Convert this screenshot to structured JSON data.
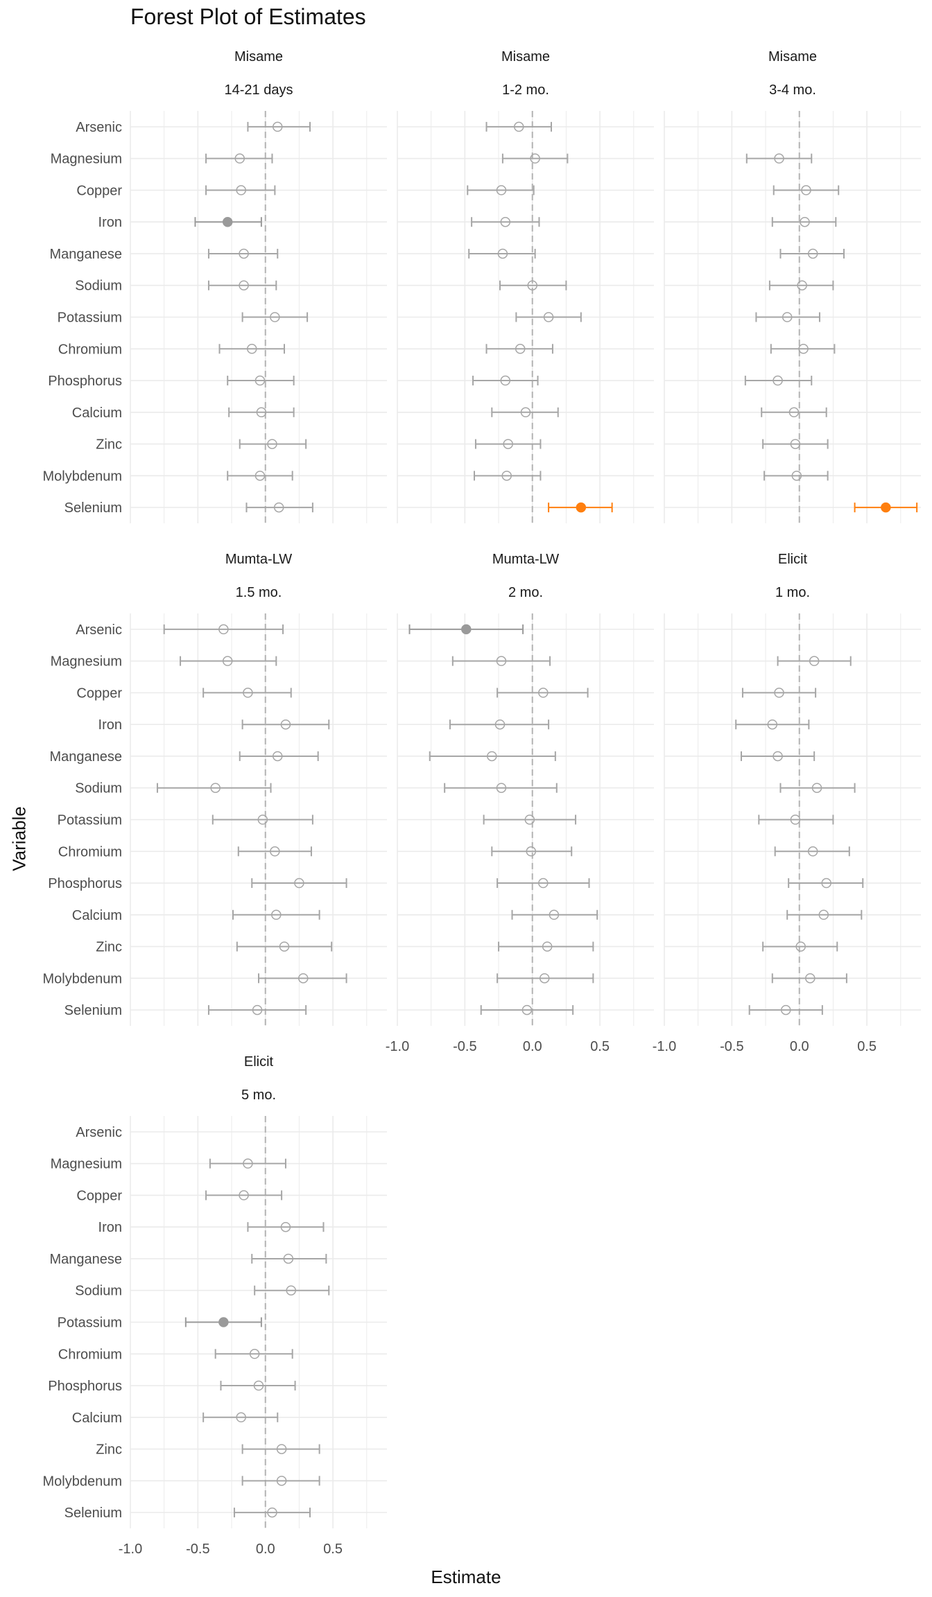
{
  "chart_data": {
    "type": "forest",
    "title": "Forest Plot of Estimates",
    "xlabel": "Estimate",
    "ylabel": "Variable",
    "xlim": [
      -1.0,
      0.9
    ],
    "xticks": [
      "-1.0",
      "-0.5",
      "0.0",
      "0.5"
    ],
    "reference_line": 0,
    "grid": true,
    "colors": {
      "non_significant": "#a6a6a6",
      "significant_negative": "#9a9a9a",
      "significant_positive": "#ff7f0e",
      "reference_line": "#b3b3b3",
      "grid": "#ebebeb"
    },
    "variables": [
      "Arsenic",
      "Magnesium",
      "Copper",
      "Iron",
      "Manganese",
      "Sodium",
      "Potassium",
      "Chromium",
      "Phosphorus",
      "Calcium",
      "Zinc",
      "Molybdenum",
      "Selenium"
    ],
    "panels": [
      {
        "study": "Misame",
        "timepoint": "14-21 days",
        "estimates": [
          {
            "variable": "Arsenic",
            "est": 0.09,
            "lo": -0.13,
            "hi": 0.33,
            "sig": false
          },
          {
            "variable": "Magnesium",
            "est": -0.19,
            "lo": -0.44,
            "hi": 0.05,
            "sig": false
          },
          {
            "variable": "Copper",
            "est": -0.18,
            "lo": -0.44,
            "hi": 0.07,
            "sig": false
          },
          {
            "variable": "Iron",
            "est": -0.28,
            "lo": -0.52,
            "hi": -0.03,
            "sig": true,
            "direction": "negative"
          },
          {
            "variable": "Manganese",
            "est": -0.16,
            "lo": -0.42,
            "hi": 0.09,
            "sig": false
          },
          {
            "variable": "Sodium",
            "est": -0.16,
            "lo": -0.42,
            "hi": 0.08,
            "sig": false
          },
          {
            "variable": "Potassium",
            "est": 0.07,
            "lo": -0.17,
            "hi": 0.31,
            "sig": false
          },
          {
            "variable": "Chromium",
            "est": -0.1,
            "lo": -0.34,
            "hi": 0.14,
            "sig": false
          },
          {
            "variable": "Phosphorus",
            "est": -0.04,
            "lo": -0.28,
            "hi": 0.21,
            "sig": false
          },
          {
            "variable": "Calcium",
            "est": -0.03,
            "lo": -0.27,
            "hi": 0.21,
            "sig": false
          },
          {
            "variable": "Zinc",
            "est": 0.05,
            "lo": -0.19,
            "hi": 0.3,
            "sig": false
          },
          {
            "variable": "Molybdenum",
            "est": -0.04,
            "lo": -0.28,
            "hi": 0.2,
            "sig": false
          },
          {
            "variable": "Selenium",
            "est": 0.1,
            "lo": -0.14,
            "hi": 0.35,
            "sig": false
          }
        ]
      },
      {
        "study": "Misame",
        "timepoint": "1-2 mo.",
        "estimates": [
          {
            "variable": "Arsenic",
            "est": -0.1,
            "lo": -0.34,
            "hi": 0.14,
            "sig": false
          },
          {
            "variable": "Magnesium",
            "est": 0.02,
            "lo": -0.22,
            "hi": 0.26,
            "sig": false
          },
          {
            "variable": "Copper",
            "est": -0.23,
            "lo": -0.48,
            "hi": 0.01,
            "sig": false
          },
          {
            "variable": "Iron",
            "est": -0.2,
            "lo": -0.45,
            "hi": 0.05,
            "sig": false
          },
          {
            "variable": "Manganese",
            "est": -0.22,
            "lo": -0.47,
            "hi": 0.02,
            "sig": false
          },
          {
            "variable": "Sodium",
            "est": 0.0,
            "lo": -0.24,
            "hi": 0.25,
            "sig": false
          },
          {
            "variable": "Potassium",
            "est": 0.12,
            "lo": -0.12,
            "hi": 0.36,
            "sig": false
          },
          {
            "variable": "Chromium",
            "est": -0.09,
            "lo": -0.34,
            "hi": 0.15,
            "sig": false
          },
          {
            "variable": "Phosphorus",
            "est": -0.2,
            "lo": -0.44,
            "hi": 0.04,
            "sig": false
          },
          {
            "variable": "Calcium",
            "est": -0.05,
            "lo": -0.3,
            "hi": 0.19,
            "sig": false
          },
          {
            "variable": "Zinc",
            "est": -0.18,
            "lo": -0.42,
            "hi": 0.06,
            "sig": false
          },
          {
            "variable": "Molybdenum",
            "est": -0.19,
            "lo": -0.43,
            "hi": 0.06,
            "sig": false
          },
          {
            "variable": "Selenium",
            "est": 0.36,
            "lo": 0.12,
            "hi": 0.59,
            "sig": true,
            "direction": "positive"
          }
        ]
      },
      {
        "study": "Misame",
        "timepoint": "3-4 mo.",
        "estimates": [
          {
            "variable": "Arsenic",
            "est": null,
            "lo": null,
            "hi": null,
            "sig": false
          },
          {
            "variable": "Magnesium",
            "est": -0.15,
            "lo": -0.39,
            "hi": 0.09,
            "sig": false
          },
          {
            "variable": "Copper",
            "est": 0.05,
            "lo": -0.19,
            "hi": 0.29,
            "sig": false
          },
          {
            "variable": "Iron",
            "est": 0.04,
            "lo": -0.2,
            "hi": 0.27,
            "sig": false
          },
          {
            "variable": "Manganese",
            "est": 0.1,
            "lo": -0.14,
            "hi": 0.33,
            "sig": false
          },
          {
            "variable": "Sodium",
            "est": 0.02,
            "lo": -0.22,
            "hi": 0.25,
            "sig": false
          },
          {
            "variable": "Potassium",
            "est": -0.09,
            "lo": -0.32,
            "hi": 0.15,
            "sig": false
          },
          {
            "variable": "Chromium",
            "est": 0.03,
            "lo": -0.21,
            "hi": 0.26,
            "sig": false
          },
          {
            "variable": "Phosphorus",
            "est": -0.16,
            "lo": -0.4,
            "hi": 0.09,
            "sig": false
          },
          {
            "variable": "Calcium",
            "est": -0.04,
            "lo": -0.28,
            "hi": 0.2,
            "sig": false
          },
          {
            "variable": "Zinc",
            "est": -0.03,
            "lo": -0.27,
            "hi": 0.21,
            "sig": false
          },
          {
            "variable": "Molybdenum",
            "est": -0.02,
            "lo": -0.26,
            "hi": 0.21,
            "sig": false
          },
          {
            "variable": "Selenium",
            "est": 0.64,
            "lo": 0.41,
            "hi": 0.87,
            "sig": true,
            "direction": "positive"
          }
        ]
      },
      {
        "study": "Mumta-LW",
        "timepoint": "1.5 mo.",
        "estimates": [
          {
            "variable": "Arsenic",
            "est": -0.31,
            "lo": -0.75,
            "hi": 0.13,
            "sig": false
          },
          {
            "variable": "Magnesium",
            "est": -0.28,
            "lo": -0.63,
            "hi": 0.08,
            "sig": false
          },
          {
            "variable": "Copper",
            "est": -0.13,
            "lo": -0.46,
            "hi": 0.19,
            "sig": false
          },
          {
            "variable": "Iron",
            "est": 0.15,
            "lo": -0.17,
            "hi": 0.47,
            "sig": false
          },
          {
            "variable": "Manganese",
            "est": 0.09,
            "lo": -0.19,
            "hi": 0.39,
            "sig": false
          },
          {
            "variable": "Sodium",
            "est": -0.37,
            "lo": -0.8,
            "hi": 0.04,
            "sig": false
          },
          {
            "variable": "Potassium",
            "est": -0.02,
            "lo": -0.39,
            "hi": 0.35,
            "sig": false
          },
          {
            "variable": "Chromium",
            "est": 0.07,
            "lo": -0.2,
            "hi": 0.34,
            "sig": false
          },
          {
            "variable": "Phosphorus",
            "est": 0.25,
            "lo": -0.1,
            "hi": 0.6,
            "sig": false
          },
          {
            "variable": "Calcium",
            "est": 0.08,
            "lo": -0.24,
            "hi": 0.4,
            "sig": false
          },
          {
            "variable": "Zinc",
            "est": 0.14,
            "lo": -0.21,
            "hi": 0.49,
            "sig": false
          },
          {
            "variable": "Molybdenum",
            "est": 0.28,
            "lo": -0.05,
            "hi": 0.6,
            "sig": false
          },
          {
            "variable": "Selenium",
            "est": -0.06,
            "lo": -0.42,
            "hi": 0.3,
            "sig": false
          }
        ]
      },
      {
        "study": "Mumta-LW",
        "timepoint": "2 mo.",
        "estimates": [
          {
            "variable": "Arsenic",
            "est": -0.49,
            "lo": -0.91,
            "hi": -0.07,
            "sig": true,
            "direction": "negative"
          },
          {
            "variable": "Magnesium",
            "est": -0.23,
            "lo": -0.59,
            "hi": 0.13,
            "sig": false
          },
          {
            "variable": "Copper",
            "est": 0.08,
            "lo": -0.26,
            "hi": 0.41,
            "sig": false
          },
          {
            "variable": "Iron",
            "est": -0.24,
            "lo": -0.61,
            "hi": 0.12,
            "sig": false
          },
          {
            "variable": "Manganese",
            "est": -0.3,
            "lo": -0.76,
            "hi": 0.17,
            "sig": false
          },
          {
            "variable": "Sodium",
            "est": -0.23,
            "lo": -0.65,
            "hi": 0.18,
            "sig": false
          },
          {
            "variable": "Potassium",
            "est": -0.02,
            "lo": -0.36,
            "hi": 0.32,
            "sig": false
          },
          {
            "variable": "Chromium",
            "est": -0.01,
            "lo": -0.3,
            "hi": 0.29,
            "sig": false
          },
          {
            "variable": "Phosphorus",
            "est": 0.08,
            "lo": -0.26,
            "hi": 0.42,
            "sig": false
          },
          {
            "variable": "Calcium",
            "est": 0.16,
            "lo": -0.15,
            "hi": 0.48,
            "sig": false
          },
          {
            "variable": "Zinc",
            "est": 0.11,
            "lo": -0.25,
            "hi": 0.45,
            "sig": false
          },
          {
            "variable": "Molybdenum",
            "est": 0.09,
            "lo": -0.26,
            "hi": 0.45,
            "sig": false
          },
          {
            "variable": "Selenium",
            "est": -0.04,
            "lo": -0.38,
            "hi": 0.3,
            "sig": false
          }
        ]
      },
      {
        "study": "Elicit",
        "timepoint": "1 mo.",
        "estimates": [
          {
            "variable": "Arsenic",
            "est": null,
            "lo": null,
            "hi": null,
            "sig": false
          },
          {
            "variable": "Magnesium",
            "est": 0.11,
            "lo": -0.16,
            "hi": 0.38,
            "sig": false
          },
          {
            "variable": "Copper",
            "est": -0.15,
            "lo": -0.42,
            "hi": 0.12,
            "sig": false
          },
          {
            "variable": "Iron",
            "est": -0.2,
            "lo": -0.47,
            "hi": 0.07,
            "sig": false
          },
          {
            "variable": "Manganese",
            "est": -0.16,
            "lo": -0.43,
            "hi": 0.11,
            "sig": false
          },
          {
            "variable": "Sodium",
            "est": 0.13,
            "lo": -0.14,
            "hi": 0.41,
            "sig": false
          },
          {
            "variable": "Potassium",
            "est": -0.03,
            "lo": -0.3,
            "hi": 0.25,
            "sig": false
          },
          {
            "variable": "Chromium",
            "est": 0.1,
            "lo": -0.18,
            "hi": 0.37,
            "sig": false
          },
          {
            "variable": "Phosphorus",
            "est": 0.2,
            "lo": -0.08,
            "hi": 0.47,
            "sig": false
          },
          {
            "variable": "Calcium",
            "est": 0.18,
            "lo": -0.09,
            "hi": 0.46,
            "sig": false
          },
          {
            "variable": "Zinc",
            "est": 0.01,
            "lo": -0.27,
            "hi": 0.28,
            "sig": false
          },
          {
            "variable": "Molybdenum",
            "est": 0.08,
            "lo": -0.2,
            "hi": 0.35,
            "sig": false
          },
          {
            "variable": "Selenium",
            "est": -0.1,
            "lo": -0.37,
            "hi": 0.17,
            "sig": false
          }
        ]
      },
      {
        "study": "Elicit",
        "timepoint": "5 mo.",
        "estimates": [
          {
            "variable": "Arsenic",
            "est": null,
            "lo": null,
            "hi": null,
            "sig": false
          },
          {
            "variable": "Magnesium",
            "est": -0.13,
            "lo": -0.41,
            "hi": 0.15,
            "sig": false
          },
          {
            "variable": "Copper",
            "est": -0.16,
            "lo": -0.44,
            "hi": 0.12,
            "sig": false
          },
          {
            "variable": "Iron",
            "est": 0.15,
            "lo": -0.13,
            "hi": 0.43,
            "sig": false
          },
          {
            "variable": "Manganese",
            "est": 0.17,
            "lo": -0.1,
            "hi": 0.45,
            "sig": false
          },
          {
            "variable": "Sodium",
            "est": 0.19,
            "lo": -0.08,
            "hi": 0.47,
            "sig": false
          },
          {
            "variable": "Potassium",
            "est": -0.31,
            "lo": -0.59,
            "hi": -0.03,
            "sig": true,
            "direction": "negative"
          },
          {
            "variable": "Chromium",
            "est": -0.08,
            "lo": -0.37,
            "hi": 0.2,
            "sig": false
          },
          {
            "variable": "Phosphorus",
            "est": -0.05,
            "lo": -0.33,
            "hi": 0.22,
            "sig": false
          },
          {
            "variable": "Calcium",
            "est": -0.18,
            "lo": -0.46,
            "hi": 0.09,
            "sig": false
          },
          {
            "variable": "Zinc",
            "est": 0.12,
            "lo": -0.17,
            "hi": 0.4,
            "sig": false
          },
          {
            "variable": "Molybdenum",
            "est": 0.12,
            "lo": -0.17,
            "hi": 0.4,
            "sig": false
          },
          {
            "variable": "Selenium",
            "est": 0.05,
            "lo": -0.23,
            "hi": 0.33,
            "sig": false
          }
        ]
      }
    ]
  }
}
